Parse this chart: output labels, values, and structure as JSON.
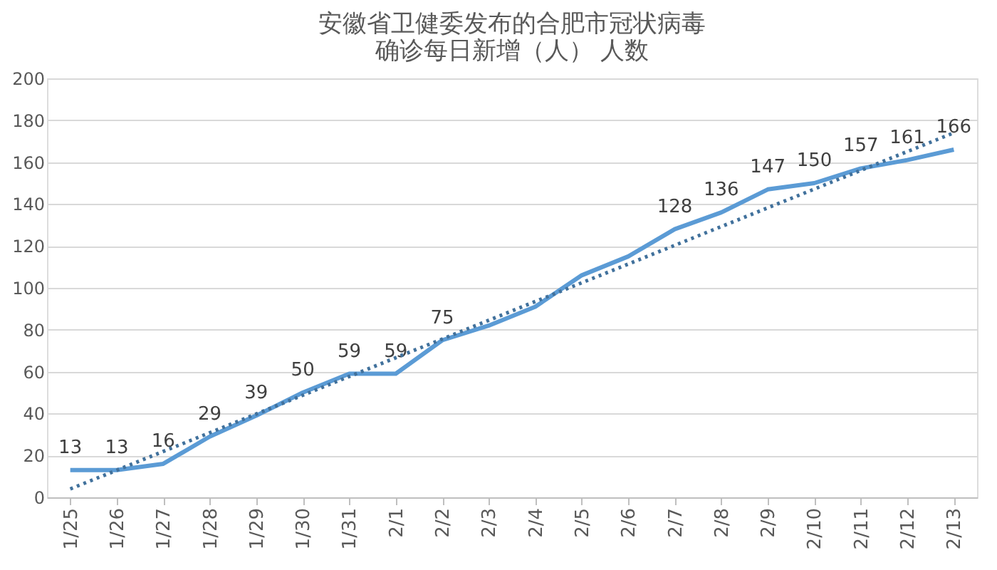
{
  "chart_data": {
    "type": "line",
    "title": [
      "安徽省卫健委发布的合肥市冠状病毒",
      "确诊每日新增（人） 人数"
    ],
    "categories": [
      "1/25",
      "1/26",
      "1/27",
      "1/28",
      "1/29",
      "1/30",
      "1/31",
      "2/1",
      "2/2",
      "2/3",
      "2/4",
      "2/5",
      "2/6",
      "2/7",
      "2/8",
      "2/9",
      "2/10",
      "2/11",
      "2/12",
      "2/13"
    ],
    "series": [
      {
        "color": "#5b9bd5",
        "line_style": "solid",
        "values": [
          13,
          13,
          16,
          29,
          39,
          50,
          59,
          59,
          75,
          82,
          91,
          106,
          115,
          128,
          136,
          147,
          150,
          157,
          161,
          166
        ],
        "value_labels": [
          "13",
          "13",
          "16",
          "29",
          "39",
          "50",
          "59",
          "59",
          "75",
          null,
          null,
          null,
          null,
          "128",
          "136",
          "147",
          "150",
          "157",
          "161",
          "166"
        ]
      },
      {
        "color": "#41719c",
        "line_style": "dotted",
        "x": [
          "1/25",
          "2/13"
        ],
        "values": [
          4,
          174
        ]
      }
    ],
    "ylim": [
      0,
      200
    ],
    "yticks": [
      0,
      20,
      40,
      60,
      80,
      100,
      120,
      140,
      160,
      180,
      200
    ],
    "grid": "y"
  }
}
